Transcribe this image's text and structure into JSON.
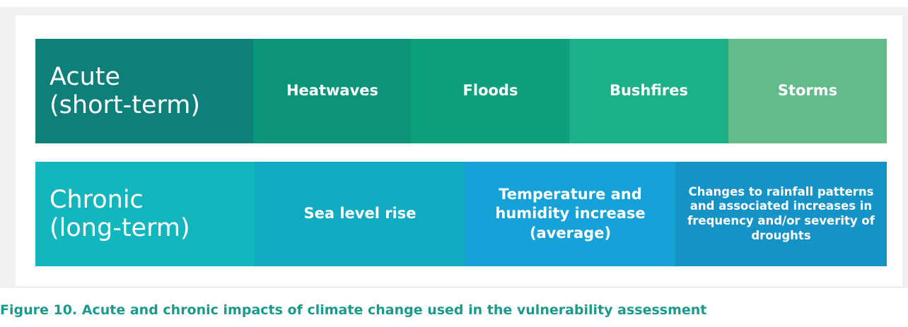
{
  "rows": [
    {
      "label": "Acute\n(short-term)",
      "items": [
        "Heatwaves",
        "Floods",
        "Bushfires",
        "Storms"
      ]
    },
    {
      "label": "Chronic\n(long-term)",
      "items": [
        "Sea level rise",
        "Temperature and humidity increase (average)",
        "Changes to rainfall patterns and associated increases in frequency and/or severity of droughts"
      ]
    }
  ],
  "caption": "Figure 10. Acute and chronic impacts of climate change used in the vulnerability assessment"
}
